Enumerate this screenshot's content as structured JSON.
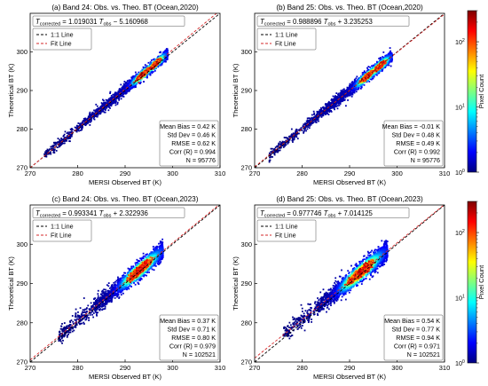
{
  "colorbar": {
    "label": "Pixel Count",
    "scale": "log",
    "range": [
      1,
      300
    ],
    "ticks": [
      {
        "value": 1,
        "base": "10",
        "exp": "0"
      },
      {
        "value": 10,
        "base": "10",
        "exp": "1"
      },
      {
        "value": 100,
        "base": "10",
        "exp": "2"
      }
    ],
    "colormap": [
      "#00007f",
      "#0000ff",
      "#007fff",
      "#00ffff",
      "#7fff7f",
      "#ffff00",
      "#ff7f00",
      "#ff0000",
      "#7f0000"
    ]
  },
  "line_colors": {
    "one_to_one": "#000000",
    "fit": "#d62728"
  },
  "chart_data": [
    {
      "type": "scatter",
      "panel": "a",
      "title": "(a) Band 24: Obs. vs. Theo. BT (Ocean,2020)",
      "equation": {
        "lhs_main": "T",
        "lhs_sub": "corrected",
        "eq": " = 1.019031 ",
        "rhs_main": "T",
        "rhs_sub": "obs",
        "tail": " − 5.160968"
      },
      "fit": {
        "slope": 1.019031,
        "intercept": -5.160968
      },
      "legend": [
        "1:1 Line",
        "Fit Line"
      ],
      "xlabel": "MERSI Observed BT (K)",
      "ylabel": "Theoretical BT (K)",
      "xlim": [
        270,
        310
      ],
      "ylim": [
        270,
        310
      ],
      "xticks": [
        "270",
        "280",
        "290",
        "300",
        "310"
      ],
      "yticks": [
        "270",
        "280",
        "290",
        "300"
      ],
      "stats": [
        {
          "label": "Mean Bias = ",
          "value": "0.42 K"
        },
        {
          "label": "Std Dev = ",
          "value": "0.46 K"
        },
        {
          "label": "RMSE = ",
          "value": "0.62 K"
        },
        {
          "label": "Corr (R) = ",
          "value": "0.994"
        },
        {
          "label": "N = ",
          "value": "95776"
        }
      ],
      "density": {
        "x_range": [
          273,
          299
        ],
        "core": [
          [
            293,
            294.5
          ],
          [
            296,
            296.8
          ]
        ],
        "spread_K": 0.6
      }
    },
    {
      "type": "scatter",
      "panel": "b",
      "title": "(b) Band 25: Obs. vs. Theo. BT (Ocean,2020)",
      "equation": {
        "lhs_main": "T",
        "lhs_sub": "corrected",
        "eq": " = 0.988896 ",
        "rhs_main": "T",
        "rhs_sub": "obs",
        "tail": " + 3.235253"
      },
      "fit": {
        "slope": 0.988896,
        "intercept": 3.235253
      },
      "legend": [
        "1:1 Line",
        "Fit Line"
      ],
      "xlabel": "MERSI Observed BT (K)",
      "ylabel": "Theoretical BT (K)",
      "xlim": [
        270,
        310
      ],
      "ylim": [
        270,
        310
      ],
      "xticks": [
        "270",
        "280",
        "290",
        "300",
        "310"
      ],
      "yticks": [
        "270",
        "280",
        "290",
        "300"
      ],
      "stats": [
        {
          "label": "Mean Bias = ",
          "value": "-0.01 K"
        },
        {
          "label": "Std Dev = ",
          "value": "0.48 K"
        },
        {
          "label": "RMSE = ",
          "value": "0.49 K"
        },
        {
          "label": "Corr (R) = ",
          "value": "0.992"
        },
        {
          "label": "N = ",
          "value": "95776"
        }
      ],
      "density": {
        "x_range": [
          273,
          299
        ],
        "core": [
          [
            293,
            294.5
          ],
          [
            296,
            296.8
          ]
        ],
        "spread_K": 0.65
      }
    },
    {
      "type": "scatter",
      "panel": "c",
      "title": "(c) Band 24: Obs. vs. Theo. BT (Ocean,2023)",
      "equation": {
        "lhs_main": "T",
        "lhs_sub": "corrected",
        "eq": " = 0.993341 ",
        "rhs_main": "T",
        "rhs_sub": "obs",
        "tail": " + 2.322936"
      },
      "fit": {
        "slope": 0.993341,
        "intercept": 2.322936
      },
      "legend": [
        "1:1 Line",
        "Fit Line"
      ],
      "xlabel": "MERSI Observed BT (K)",
      "ylabel": "Theoretical BT (K)",
      "xlim": [
        270,
        310
      ],
      "ylim": [
        270,
        310
      ],
      "xticks": [
        "270",
        "280",
        "290",
        "300",
        "310"
      ],
      "yticks": [
        "270",
        "280",
        "290",
        "300"
      ],
      "stats": [
        {
          "label": "Mean Bias = ",
          "value": "0.37 K"
        },
        {
          "label": "Std Dev = ",
          "value": "0.71 K"
        },
        {
          "label": "RMSE = ",
          "value": "0.80 K"
        },
        {
          "label": "Corr (R) = ",
          "value": "0.979"
        },
        {
          "label": "N = ",
          "value": "102521"
        }
      ],
      "density": {
        "x_range": [
          276,
          298
        ],
        "core": [
          [
            291,
            295
          ]
        ],
        "spread_K": 1.0
      }
    },
    {
      "type": "scatter",
      "panel": "d",
      "title": "(d) Band 25: Obs. vs. Theo. BT (Ocean,2023)",
      "equation": {
        "lhs_main": "T",
        "lhs_sub": "corrected",
        "eq": " = 0.977746 ",
        "rhs_main": "T",
        "rhs_sub": "obs",
        "tail": " + 7.014125"
      },
      "fit": {
        "slope": 0.977746,
        "intercept": 7.014125
      },
      "legend": [
        "1:1 Line",
        "Fit Line"
      ],
      "xlabel": "MERSI Observed BT (K)",
      "ylabel": "Theoretical BT (K)",
      "xlim": [
        270,
        310
      ],
      "ylim": [
        270,
        310
      ],
      "xticks": [
        "270",
        "280",
        "290",
        "300",
        "310"
      ],
      "yticks": [
        "270",
        "280",
        "290",
        "300"
      ],
      "stats": [
        {
          "label": "Mean Bias = ",
          "value": "0.54 K"
        },
        {
          "label": "Std Dev = ",
          "value": "0.77 K"
        },
        {
          "label": "RMSE = ",
          "value": "0.94 K"
        },
        {
          "label": "Corr (R) = ",
          "value": "0.971"
        },
        {
          "label": "N = ",
          "value": "102521"
        }
      ],
      "density": {
        "x_range": [
          276,
          298
        ],
        "core": [
          [
            290,
            294.5
          ]
        ],
        "spread_K": 1.1
      }
    }
  ]
}
